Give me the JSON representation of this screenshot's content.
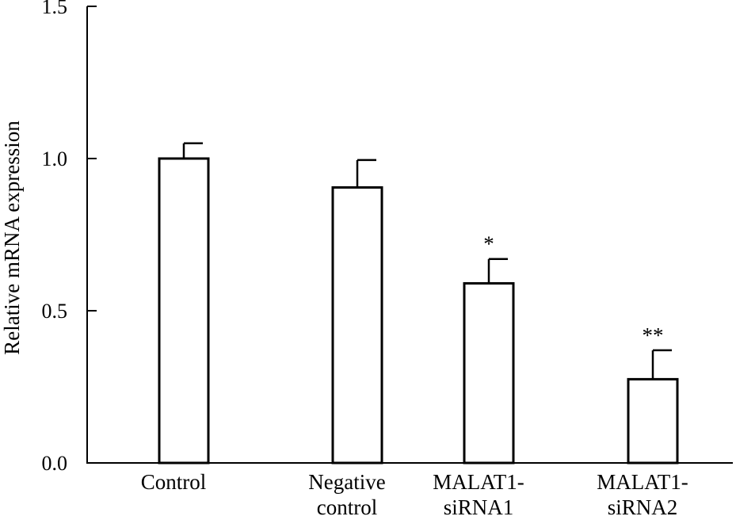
{
  "chart_data": {
    "type": "bar",
    "title": "",
    "xlabel": "",
    "ylabel": "Relative mRNA expression",
    "ylim": [
      0,
      1.5
    ],
    "yticks": [
      0.0,
      0.5,
      1.0,
      1.5
    ],
    "ytick_labels": [
      "0.0",
      "0.5",
      "1.0",
      "1.5"
    ],
    "grid": false,
    "categories": [
      [
        "Control"
      ],
      [
        "Negative",
        "control"
      ],
      [
        "MALAT1-",
        "siRNA1"
      ],
      [
        "MALAT1-",
        "siRNA2"
      ]
    ],
    "values": [
      1.0,
      0.905,
      0.59,
      0.275
    ],
    "errors": [
      0.05,
      0.09,
      0.08,
      0.095
    ],
    "significance": [
      "",
      "",
      "*",
      "**"
    ],
    "colors": {
      "bar_fill": "#ffffff",
      "bar_stroke": "#000000",
      "axis": "#000000"
    }
  }
}
